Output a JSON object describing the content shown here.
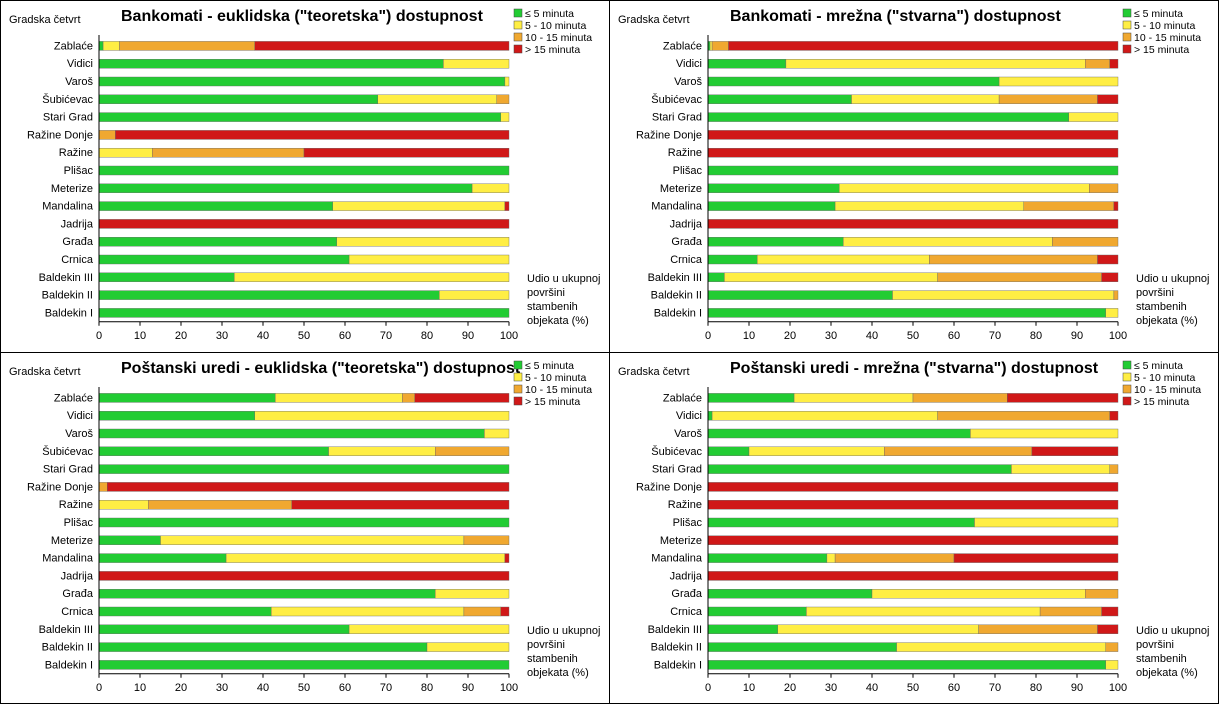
{
  "colors": {
    "c1": "#22cc33",
    "c2": "#ffee44",
    "c3": "#f0a830",
    "c4": "#d01818"
  },
  "y_axis_title": "Gradska četvrt",
  "x_axis_title_lines": [
    "Udio u ukupnoj",
    "površini",
    "stambenih",
    "objekata (%)"
  ],
  "chart_data": [
    {
      "type": "bar",
      "stacked": true,
      "orientation": "horizontal",
      "title": "Bankomati - euklidska (\"teoretska\") dostupnost",
      "ylabel": "Gradska četvrt",
      "xlabel": "Udio u ukupnoj površini stambenih objekata (%)",
      "xlim": [
        0,
        100
      ],
      "xticks": [
        0,
        10,
        20,
        30,
        40,
        50,
        60,
        70,
        80,
        90,
        100
      ],
      "legend_position": "top-right",
      "categories": [
        "Zablaće",
        "Vidici",
        "Varoš",
        "Šubićevac",
        "Stari Grad",
        "Ražine Donje",
        "Ražine",
        "Plišac",
        "Meterize",
        "Mandalina",
        "Jadrija",
        "Građa",
        "Crnica",
        "Baldekin III",
        "Baldekin II",
        "Baldekin I"
      ],
      "series": [
        {
          "name": "≤ 5 minuta",
          "values": [
            1,
            84,
            99,
            68,
            98,
            0,
            0,
            100,
            91,
            57,
            0,
            58,
            61,
            33,
            83,
            100
          ]
        },
        {
          "name": "5 - 10 minuta",
          "values": [
            4,
            16,
            1,
            29,
            2,
            0,
            13,
            0,
            9,
            42,
            0,
            42,
            39,
            67,
            17,
            0
          ]
        },
        {
          "name": "10 - 15 minuta",
          "values": [
            33,
            0,
            0,
            3,
            0,
            4,
            37,
            0,
            0,
            0,
            0,
            0,
            0,
            0,
            0,
            0
          ]
        },
        {
          "name": "> 15 minuta",
          "values": [
            62,
            0,
            0,
            0,
            0,
            96,
            50,
            0,
            0,
            1,
            100,
            0,
            0,
            0,
            0,
            0
          ]
        }
      ]
    },
    {
      "type": "bar",
      "stacked": true,
      "orientation": "horizontal",
      "title": "Bankomati - mrežna (\"stvarna\") dostupnost",
      "ylabel": "Gradska četvrt",
      "xlabel": "Udio u ukupnoj površini stambenih objekata (%)",
      "xlim": [
        0,
        100
      ],
      "xticks": [
        0,
        10,
        20,
        30,
        40,
        50,
        60,
        70,
        80,
        90,
        100
      ],
      "legend_position": "top-right",
      "categories": [
        "Zablaće",
        "Vidici",
        "Varoš",
        "Šubićevac",
        "Stari Grad",
        "Ražine Donje",
        "Ražine",
        "Plišac",
        "Meterize",
        "Mandalina",
        "Jadrija",
        "Građa",
        "Crnica",
        "Baldekin III",
        "Baldekin II",
        "Baldekin I"
      ],
      "series": [
        {
          "name": "≤ 5 minuta",
          "values": [
            0.5,
            19,
            71,
            35,
            88,
            0,
            0,
            100,
            32,
            31,
            0,
            33,
            12,
            4,
            45,
            97
          ]
        },
        {
          "name": "5 - 10 minuta",
          "values": [
            0.5,
            73,
            29,
            36,
            12,
            0,
            0,
            0,
            61,
            46,
            0,
            51,
            42,
            52,
            54,
            3
          ]
        },
        {
          "name": "10 - 15 minuta",
          "values": [
            4,
            6,
            0,
            24,
            0,
            0,
            0,
            0,
            7,
            22,
            0,
            16,
            41,
            40,
            1,
            0
          ]
        },
        {
          "name": "> 15 minuta",
          "values": [
            95,
            2,
            0,
            5,
            0,
            100,
            100,
            0,
            0,
            1,
            100,
            0,
            5,
            4,
            0,
            0
          ]
        }
      ]
    },
    {
      "type": "bar",
      "stacked": true,
      "orientation": "horizontal",
      "title": "Poštanski uredi - euklidska (\"teoretska\") dostupnost",
      "ylabel": "Gradska četvrt",
      "xlabel": "Udio u ukupnoj površini stambenih objekata (%)",
      "xlim": [
        0,
        100
      ],
      "xticks": [
        0,
        10,
        20,
        30,
        40,
        50,
        60,
        70,
        80,
        90,
        100
      ],
      "legend_position": "top-right",
      "categories": [
        "Zablaće",
        "Vidici",
        "Varoš",
        "Šubićevac",
        "Stari Grad",
        "Ražine Donje",
        "Ražine",
        "Plišac",
        "Meterize",
        "Mandalina",
        "Jadrija",
        "Građa",
        "Crnica",
        "Baldekin III",
        "Baldekin II",
        "Baldekin I"
      ],
      "series": [
        {
          "name": "≤ 5 minuta",
          "values": [
            43,
            38,
            94,
            56,
            100,
            0,
            0,
            100,
            15,
            31,
            0,
            82,
            42,
            61,
            80,
            100
          ]
        },
        {
          "name": "5 - 10 minuta",
          "values": [
            31,
            62,
            6,
            26,
            0,
            0,
            12,
            0,
            74,
            68,
            0,
            18,
            47,
            39,
            20,
            0
          ]
        },
        {
          "name": "10 - 15 minuta",
          "values": [
            3,
            0,
            0,
            18,
            0,
            2,
            35,
            0,
            11,
            0,
            0,
            0,
            9,
            0,
            0,
            0
          ]
        },
        {
          "name": "> 15 minuta",
          "values": [
            23,
            0,
            0,
            0,
            0,
            98,
            53,
            0,
            0,
            1,
            100,
            0,
            2,
            0,
            0,
            0
          ]
        }
      ]
    },
    {
      "type": "bar",
      "stacked": true,
      "orientation": "horizontal",
      "title": "Poštanski uredi - mrežna (\"stvarna\") dostupnost",
      "ylabel": "Gradska četvrt",
      "xlabel": "Udio u ukupnoj površini stambenih objekata (%)",
      "xlim": [
        0,
        100
      ],
      "xticks": [
        0,
        10,
        20,
        30,
        40,
        50,
        60,
        70,
        80,
        90,
        100
      ],
      "legend_position": "top-right",
      "categories": [
        "Zablaće",
        "Vidici",
        "Varoš",
        "Šubićevac",
        "Stari Grad",
        "Ražine Donje",
        "Ražine",
        "Plišac",
        "Meterize",
        "Mandalina",
        "Jadrija",
        "Građa",
        "Crnica",
        "Baldekin III",
        "Baldekin II",
        "Baldekin I"
      ],
      "series": [
        {
          "name": "≤ 5 minuta",
          "values": [
            21,
            1,
            64,
            10,
            74,
            0,
            0,
            65,
            0,
            29,
            0,
            40,
            24,
            17,
            46,
            97
          ]
        },
        {
          "name": "5 - 10 minuta",
          "values": [
            29,
            55,
            36,
            33,
            24,
            0,
            0,
            35,
            0,
            2,
            0,
            52,
            57,
            49,
            51,
            3
          ]
        },
        {
          "name": "10 - 15 minuta",
          "values": [
            23,
            42,
            0,
            36,
            2,
            0,
            0,
            0,
            0,
            29,
            0,
            8,
            15,
            29,
            3,
            0
          ]
        },
        {
          "name": "> 15 minuta",
          "values": [
            27,
            2,
            0,
            21,
            0,
            100,
            100,
            0,
            100,
            40,
            100,
            0,
            4,
            5,
            0,
            0
          ]
        }
      ]
    }
  ]
}
